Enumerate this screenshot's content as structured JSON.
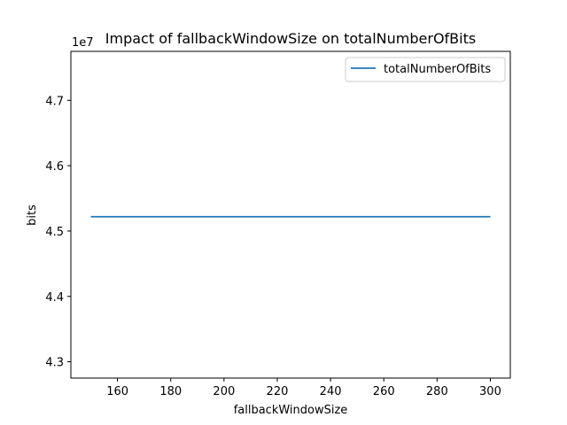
{
  "chart_data": {
    "type": "line",
    "title": "Impact of fallbackWindowSize on totalNumberOfBits",
    "xlabel": "fallbackWindowSize",
    "ylabel": "bits",
    "y_offset_label": "1e7",
    "xlim": [
      142.5,
      307.5
    ],
    "ylim": [
      42750000,
      47750000
    ],
    "xticks": [
      160,
      180,
      200,
      220,
      240,
      260,
      280,
      300
    ],
    "xtick_labels": [
      "160",
      "180",
      "200",
      "220",
      "240",
      "260",
      "280",
      "300"
    ],
    "yticks": [
      43000000,
      44000000,
      45000000,
      46000000,
      47000000
    ],
    "ytick_labels": [
      "4.3",
      "4.4",
      "4.5",
      "4.6",
      "4.7"
    ],
    "legend_position": "top-right",
    "grid": false,
    "series": [
      {
        "name": "totalNumberOfBits",
        "color": "#1f77b4",
        "x": [
          150,
          300
        ],
        "y": [
          45220000,
          45220000
        ]
      }
    ]
  }
}
